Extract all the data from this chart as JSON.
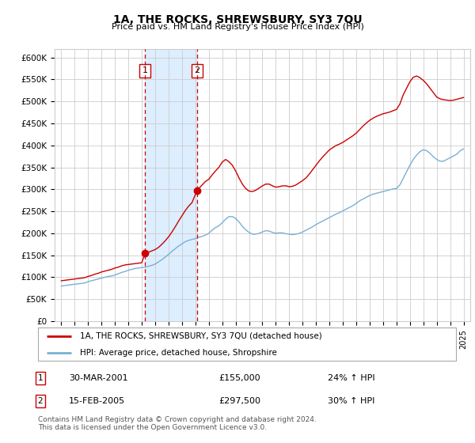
{
  "title": "1A, THE ROCKS, SHREWSBURY, SY3 7QU",
  "subtitle": "Price paid vs. HM Land Registry's House Price Index (HPI)",
  "ylim": [
    0,
    620000
  ],
  "yticks": [
    0,
    50000,
    100000,
    150000,
    200000,
    250000,
    300000,
    350000,
    400000,
    450000,
    500000,
    550000,
    600000
  ],
  "ytick_labels": [
    "£0",
    "£50K",
    "£100K",
    "£150K",
    "£200K",
    "£250K",
    "£300K",
    "£350K",
    "£400K",
    "£450K",
    "£500K",
    "£550K",
    "£600K"
  ],
  "xlim_start": 1994.5,
  "xlim_end": 2025.5,
  "xtick_years": [
    1995,
    1996,
    1997,
    1998,
    1999,
    2000,
    2001,
    2002,
    2003,
    2004,
    2005,
    2006,
    2007,
    2008,
    2009,
    2010,
    2011,
    2012,
    2013,
    2014,
    2015,
    2016,
    2017,
    2018,
    2019,
    2020,
    2021,
    2022,
    2023,
    2024,
    2025
  ],
  "grid_color": "#cccccc",
  "red_line_color": "#cc0000",
  "blue_line_color": "#7bafd4",
  "shade_color": "#ddeeff",
  "vline_color": "#cc0000",
  "transaction1_x": 2001.25,
  "transaction1_y": 155000,
  "transaction2_x": 2005.12,
  "transaction2_y": 297500,
  "transaction1_label": "1",
  "transaction2_label": "2",
  "legend_line1": "1A, THE ROCKS, SHREWSBURY, SY3 7QU (detached house)",
  "legend_line2": "HPI: Average price, detached house, Shropshire",
  "table_row1": [
    "1",
    "30-MAR-2001",
    "£155,000",
    "24% ↑ HPI"
  ],
  "table_row2": [
    "2",
    "15-FEB-2005",
    "£297,500",
    "30% ↑ HPI"
  ],
  "footnote": "Contains HM Land Registry data © Crown copyright and database right 2024.\nThis data is licensed under the Open Government Licence v3.0.",
  "hpi_years": [
    1995.0,
    1995.25,
    1995.5,
    1995.75,
    1996.0,
    1996.25,
    1996.5,
    1996.75,
    1997.0,
    1997.25,
    1997.5,
    1997.75,
    1998.0,
    1998.25,
    1998.5,
    1998.75,
    1999.0,
    1999.25,
    1999.5,
    1999.75,
    2000.0,
    2000.25,
    2000.5,
    2000.75,
    2001.0,
    2001.25,
    2001.5,
    2001.75,
    2002.0,
    2002.25,
    2002.5,
    2002.75,
    2003.0,
    2003.25,
    2003.5,
    2003.75,
    2004.0,
    2004.25,
    2004.5,
    2004.75,
    2005.0,
    2005.25,
    2005.5,
    2005.75,
    2006.0,
    2006.25,
    2006.5,
    2006.75,
    2007.0,
    2007.25,
    2007.5,
    2007.75,
    2008.0,
    2008.25,
    2008.5,
    2008.75,
    2009.0,
    2009.25,
    2009.5,
    2009.75,
    2010.0,
    2010.25,
    2010.5,
    2010.75,
    2011.0,
    2011.25,
    2011.5,
    2011.75,
    2012.0,
    2012.25,
    2012.5,
    2012.75,
    2013.0,
    2013.25,
    2013.5,
    2013.75,
    2014.0,
    2014.25,
    2014.5,
    2014.75,
    2015.0,
    2015.25,
    2015.5,
    2015.75,
    2016.0,
    2016.25,
    2016.5,
    2016.75,
    2017.0,
    2017.25,
    2017.5,
    2017.75,
    2018.0,
    2018.25,
    2018.5,
    2018.75,
    2019.0,
    2019.25,
    2019.5,
    2019.75,
    2020.0,
    2020.25,
    2020.5,
    2020.75,
    2021.0,
    2021.25,
    2021.5,
    2021.75,
    2022.0,
    2022.25,
    2022.5,
    2022.75,
    2023.0,
    2023.25,
    2023.5,
    2023.75,
    2024.0,
    2024.25,
    2024.5,
    2024.75,
    2025.0
  ],
  "hpi_values": [
    80000,
    81000,
    82000,
    83000,
    84000,
    85000,
    86000,
    87000,
    90000,
    92000,
    94000,
    96000,
    98000,
    100000,
    102000,
    103000,
    105000,
    108000,
    111000,
    113000,
    116000,
    118000,
    120000,
    121000,
    122000,
    123000,
    125000,
    127000,
    130000,
    135000,
    140000,
    146000,
    152000,
    159000,
    165000,
    171000,
    176000,
    181000,
    184000,
    186000,
    188000,
    191000,
    193000,
    196000,
    200000,
    207000,
    213000,
    217000,
    224000,
    232000,
    238000,
    238000,
    234000,
    226000,
    216000,
    208000,
    202000,
    198000,
    198000,
    200000,
    203000,
    206000,
    205000,
    202000,
    200000,
    201000,
    201000,
    199000,
    198000,
    197000,
    198000,
    200000,
    203000,
    207000,
    211000,
    215000,
    220000,
    224000,
    228000,
    232000,
    236000,
    240000,
    244000,
    247000,
    251000,
    255000,
    259000,
    263000,
    268000,
    274000,
    278000,
    282000,
    286000,
    289000,
    291000,
    293000,
    295000,
    297000,
    299000,
    301000,
    302000,
    310000,
    325000,
    340000,
    355000,
    368000,
    378000,
    386000,
    390000,
    388000,
    382000,
    374000,
    368000,
    364000,
    364000,
    368000,
    372000,
    376000,
    380000,
    388000,
    392000
  ],
  "red_years": [
    1995.0,
    1995.25,
    1995.5,
    1995.75,
    1996.0,
    1996.25,
    1996.5,
    1996.75,
    1997.0,
    1997.25,
    1997.5,
    1997.75,
    1998.0,
    1998.25,
    1998.5,
    1998.75,
    1999.0,
    1999.25,
    1999.5,
    1999.75,
    2000.0,
    2000.25,
    2000.5,
    2000.75,
    2001.0,
    2001.25,
    2001.5,
    2001.75,
    2002.0,
    2002.25,
    2002.5,
    2002.75,
    2003.0,
    2003.25,
    2003.5,
    2003.75,
    2004.0,
    2004.25,
    2004.5,
    2004.75,
    2005.12,
    2005.5,
    2005.75,
    2006.0,
    2006.25,
    2006.5,
    2006.75,
    2007.0,
    2007.25,
    2007.5,
    2007.75,
    2008.0,
    2008.25,
    2008.5,
    2008.75,
    2009.0,
    2009.25,
    2009.5,
    2009.75,
    2010.0,
    2010.25,
    2010.5,
    2010.75,
    2011.0,
    2011.25,
    2011.5,
    2011.75,
    2012.0,
    2012.25,
    2012.5,
    2012.75,
    2013.0,
    2013.25,
    2013.5,
    2013.75,
    2014.0,
    2014.25,
    2014.5,
    2014.75,
    2015.0,
    2015.25,
    2015.5,
    2015.75,
    2016.0,
    2016.25,
    2016.5,
    2016.75,
    2017.0,
    2017.25,
    2017.5,
    2017.75,
    2018.0,
    2018.25,
    2018.5,
    2018.75,
    2019.0,
    2019.25,
    2019.5,
    2019.75,
    2020.0,
    2020.25,
    2020.5,
    2020.75,
    2021.0,
    2021.25,
    2021.5,
    2021.75,
    2022.0,
    2022.25,
    2022.5,
    2022.75,
    2023.0,
    2023.25,
    2023.5,
    2023.75,
    2024.0,
    2024.25,
    2024.5,
    2024.75,
    2025.0
  ],
  "red_values": [
    92000,
    93000,
    94000,
    95000,
    96000,
    97000,
    98000,
    99000,
    102000,
    104000,
    107000,
    109000,
    112000,
    114000,
    116000,
    118000,
    121000,
    123000,
    126000,
    128000,
    129000,
    130000,
    131000,
    132000,
    133000,
    155000,
    157000,
    160000,
    163000,
    168000,
    175000,
    183000,
    192000,
    203000,
    215000,
    228000,
    240000,
    252000,
    262000,
    270000,
    297500,
    310000,
    318000,
    323000,
    333000,
    342000,
    350000,
    362000,
    368000,
    363000,
    355000,
    342000,
    326000,
    312000,
    302000,
    296000,
    295000,
    298000,
    303000,
    308000,
    312000,
    312000,
    308000,
    305000,
    306000,
    308000,
    308000,
    306000,
    307000,
    310000,
    315000,
    320000,
    326000,
    335000,
    345000,
    355000,
    365000,
    374000,
    382000,
    390000,
    395000,
    400000,
    403000,
    407000,
    412000,
    417000,
    422000,
    428000,
    436000,
    444000,
    451000,
    457000,
    462000,
    466000,
    469000,
    472000,
    474000,
    476000,
    479000,
    482000,
    494000,
    515000,
    530000,
    545000,
    555000,
    558000,
    554000,
    548000,
    540000,
    530000,
    520000,
    510000,
    506000,
    504000,
    503000,
    502000,
    503000,
    505000,
    507000,
    509000
  ]
}
